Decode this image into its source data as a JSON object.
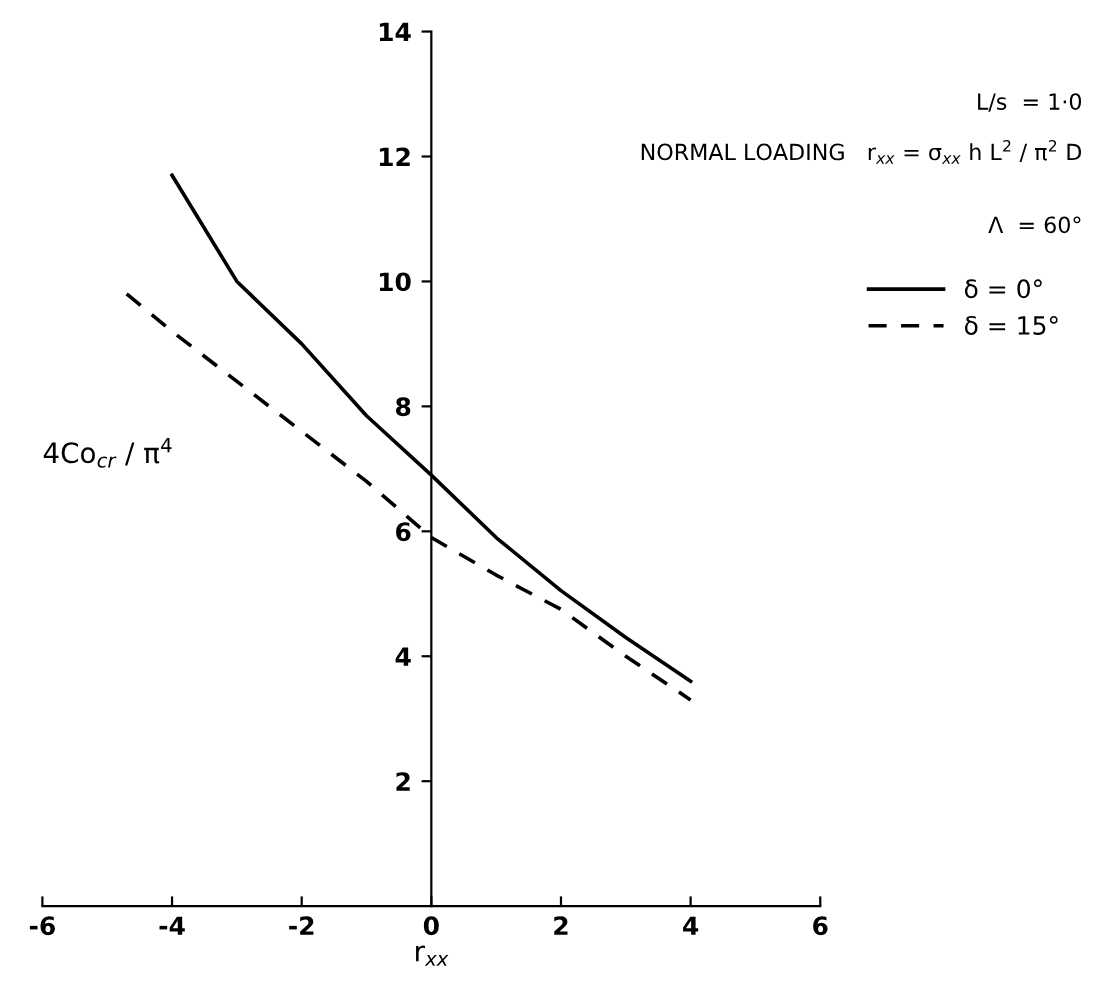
{
  "chart_data": {
    "type": "line",
    "xlabel": "r$_{xx}$",
    "ylabel": "4Co$_{cr}$ / π$^{4}$",
    "series": [
      {
        "name": "δ = 0°",
        "color": "#000000",
        "line_style": "solid",
        "x": [
          -4,
          -3,
          -2,
          -1,
          0,
          1,
          2,
          3,
          4
        ],
        "values": [
          11.7,
          10.0,
          9.0,
          7.85,
          6.9,
          5.9,
          5.05,
          4.3,
          3.6
        ]
      },
      {
        "name": "δ = 15°",
        "color": "#000000",
        "line_style": "dashed",
        "x": [
          -4.7,
          -4,
          -3,
          -2,
          -1,
          0,
          1,
          2,
          3,
          4
        ],
        "values": [
          9.8,
          9.2,
          8.4,
          7.6,
          6.8,
          5.9,
          5.3,
          4.75,
          4.0,
          3.3
        ]
      }
    ],
    "xlim": [
      -6,
      6
    ],
    "xticks": [
      -6,
      -4,
      -2,
      0,
      2,
      4,
      6
    ],
    "ylim": [
      0,
      14
    ],
    "yticks": [
      2,
      4,
      6,
      8,
      10,
      12,
      14
    ],
    "annotations": [
      "L/s  = 1·0",
      "NORMAL LOADING   r$_{xx}$ = σ$_{xx}$ h L$^{2}$ / π$^{2}$ D",
      "Λ  = 60°"
    ],
    "grid": false,
    "legend": "right",
    "marker": "none"
  }
}
